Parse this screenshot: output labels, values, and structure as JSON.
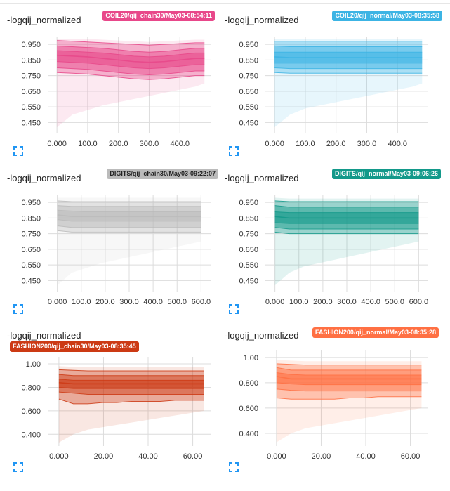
{
  "cards": [
    {
      "title": "-logqij_normalized",
      "run": "COIL20/qij_chain30/May03-08:54:11",
      "color": "#e8488a",
      "expand_icon": "fullscreen-icon"
    },
    {
      "title": "-logqij_normalized",
      "run": "COIL20/qij_normal/May03-08:35:58",
      "color": "#3cb4e4",
      "expand_icon": "fullscreen-icon"
    },
    {
      "title": "-logqij_normalized",
      "run": "DIGITS/qij_chain30/May03-09:22:07",
      "color": "#bbbbbb",
      "expand_icon": "fullscreen-icon"
    },
    {
      "title": "-logqij_normalized",
      "run": "DIGITS/qij_normal/May03-09:06:26",
      "color": "#13998a",
      "expand_icon": "fullscreen-icon"
    },
    {
      "title": "-logqij_normalized",
      "run": "FASHION200/qij_chain30/May03-08:35:45",
      "color": "#cc3a14",
      "expand_icon": "fullscreen-icon"
    },
    {
      "title": "-logqij_normalized",
      "run": "FASHION200/qij_normal/May03-08:35:28",
      "color": "#ff7043",
      "expand_icon": "fullscreen-icon"
    }
  ],
  "chart_data": [
    {
      "type": "area",
      "title": "-logqij_normalized",
      "series_label": "COIL20/qij_chain30/May03-08:54:11",
      "xlim": [
        -30,
        500
      ],
      "ylim": [
        0.38,
        1.0
      ],
      "xticks": [
        0,
        100,
        200,
        300,
        400
      ],
      "xtick_labels": [
        "0.000",
        "100.0",
        "200.0",
        "300.0",
        "400.0"
      ],
      "yticks": [
        0.45,
        0.55,
        0.65,
        0.75,
        0.85,
        0.95
      ],
      "ytick_labels": [
        "0.450",
        "0.550",
        "0.650",
        "0.750",
        "0.850",
        "0.950"
      ],
      "x": [
        0,
        50,
        100,
        150,
        200,
        250,
        300,
        350,
        400,
        450,
        480
      ],
      "max": [
        0.985,
        0.985,
        0.985,
        0.98,
        0.975,
        0.97,
        0.965,
        0.97,
        0.975,
        0.98,
        0.98
      ],
      "p93": [
        0.975,
        0.97,
        0.965,
        0.96,
        0.955,
        0.95,
        0.945,
        0.95,
        0.955,
        0.96,
        0.96
      ],
      "p84": [
        0.94,
        0.935,
        0.93,
        0.925,
        0.915,
        0.905,
        0.9,
        0.905,
        0.915,
        0.925,
        0.925
      ],
      "p69": [
        0.91,
        0.905,
        0.9,
        0.895,
        0.885,
        0.875,
        0.87,
        0.875,
        0.885,
        0.895,
        0.895
      ],
      "p50": [
        0.88,
        0.875,
        0.87,
        0.86,
        0.85,
        0.84,
        0.835,
        0.84,
        0.85,
        0.86,
        0.86
      ],
      "p31": [
        0.84,
        0.835,
        0.83,
        0.82,
        0.81,
        0.8,
        0.795,
        0.8,
        0.81,
        0.82,
        0.82
      ],
      "p16": [
        0.8,
        0.795,
        0.79,
        0.78,
        0.77,
        0.76,
        0.755,
        0.76,
        0.77,
        0.78,
        0.78
      ],
      "p7": [
        0.77,
        0.765,
        0.76,
        0.75,
        0.74,
        0.73,
        0.725,
        0.73,
        0.74,
        0.75,
        0.75
      ],
      "min": [
        0.42,
        0.5,
        0.53,
        0.56,
        0.58,
        0.6,
        0.62,
        0.64,
        0.66,
        0.68,
        0.7
      ]
    },
    {
      "type": "area",
      "title": "-logqij_normalized",
      "series_label": "COIL20/qij_normal/May03-08:35:58",
      "xlim": [
        -30,
        500
      ],
      "ylim": [
        0.38,
        1.0
      ],
      "xticks": [
        0,
        100,
        200,
        300,
        400
      ],
      "xtick_labels": [
        "0.000",
        "100.0",
        "200.0",
        "300.0",
        "400.0"
      ],
      "yticks": [
        0.45,
        0.55,
        0.65,
        0.75,
        0.85,
        0.95
      ],
      "ytick_labels": [
        "0.450",
        "0.550",
        "0.650",
        "0.750",
        "0.850",
        "0.950"
      ],
      "x": [
        0,
        50,
        100,
        150,
        200,
        250,
        300,
        350,
        400,
        450,
        480
      ],
      "max": [
        0.985,
        0.985,
        0.985,
        0.985,
        0.985,
        0.985,
        0.985,
        0.985,
        0.985,
        0.985,
        0.985
      ],
      "p93": [
        0.97,
        0.97,
        0.97,
        0.97,
        0.97,
        0.97,
        0.97,
        0.97,
        0.97,
        0.97,
        0.97
      ],
      "p84": [
        0.94,
        0.935,
        0.935,
        0.935,
        0.935,
        0.935,
        0.935,
        0.935,
        0.935,
        0.935,
        0.935
      ],
      "p69": [
        0.9,
        0.9,
        0.9,
        0.9,
        0.9,
        0.9,
        0.9,
        0.9,
        0.9,
        0.9,
        0.9
      ],
      "p50": [
        0.87,
        0.865,
        0.865,
        0.865,
        0.865,
        0.865,
        0.865,
        0.865,
        0.865,
        0.865,
        0.865
      ],
      "p31": [
        0.83,
        0.83,
        0.83,
        0.83,
        0.83,
        0.83,
        0.83,
        0.83,
        0.83,
        0.83,
        0.83
      ],
      "p16": [
        0.8,
        0.795,
        0.795,
        0.795,
        0.795,
        0.795,
        0.795,
        0.795,
        0.795,
        0.795,
        0.795
      ],
      "p7": [
        0.77,
        0.765,
        0.765,
        0.765,
        0.765,
        0.765,
        0.765,
        0.765,
        0.765,
        0.765,
        0.765
      ],
      "min": [
        0.42,
        0.5,
        0.54,
        0.56,
        0.58,
        0.6,
        0.62,
        0.64,
        0.66,
        0.68,
        0.7
      ]
    },
    {
      "type": "area",
      "title": "-logqij_normalized",
      "series_label": "DIGITS/qij_chain30/May03-09:22:07",
      "xlim": [
        -40,
        640
      ],
      "ylim": [
        0.38,
        1.0
      ],
      "xticks": [
        0,
        100,
        200,
        300,
        400,
        500,
        600
      ],
      "xtick_labels": [
        "0.000",
        "100.0",
        "200.0",
        "300.0",
        "400.0",
        "500.0",
        "600.0"
      ],
      "yticks": [
        0.45,
        0.55,
        0.65,
        0.75,
        0.85,
        0.95
      ],
      "ytick_labels": [
        "0.450",
        "0.550",
        "0.650",
        "0.750",
        "0.850",
        "0.950"
      ],
      "x": [
        0,
        60,
        120,
        180,
        240,
        300,
        360,
        420,
        480,
        540,
        600
      ],
      "max": [
        0.98,
        0.98,
        0.98,
        0.98,
        0.98,
        0.98,
        0.98,
        0.98,
        0.98,
        0.98,
        0.98
      ],
      "p93": [
        0.96,
        0.955,
        0.955,
        0.955,
        0.955,
        0.955,
        0.955,
        0.955,
        0.955,
        0.955,
        0.955
      ],
      "p84": [
        0.93,
        0.925,
        0.925,
        0.925,
        0.925,
        0.925,
        0.925,
        0.925,
        0.925,
        0.925,
        0.925
      ],
      "p69": [
        0.9,
        0.895,
        0.89,
        0.89,
        0.89,
        0.89,
        0.89,
        0.89,
        0.89,
        0.89,
        0.89
      ],
      "p50": [
        0.87,
        0.86,
        0.86,
        0.86,
        0.86,
        0.86,
        0.86,
        0.86,
        0.86,
        0.86,
        0.86
      ],
      "p31": [
        0.84,
        0.83,
        0.83,
        0.83,
        0.83,
        0.83,
        0.83,
        0.83,
        0.83,
        0.83,
        0.83
      ],
      "p16": [
        0.8,
        0.79,
        0.79,
        0.79,
        0.79,
        0.79,
        0.79,
        0.79,
        0.79,
        0.79,
        0.79
      ],
      "p7": [
        0.77,
        0.76,
        0.76,
        0.76,
        0.76,
        0.76,
        0.76,
        0.76,
        0.76,
        0.76,
        0.76
      ],
      "min": [
        0.42,
        0.5,
        0.53,
        0.56,
        0.58,
        0.6,
        0.62,
        0.64,
        0.66,
        0.68,
        0.7
      ]
    },
    {
      "type": "area",
      "title": "-logqij_normalized",
      "series_label": "DIGITS/qij_normal/May03-09:06:26",
      "xlim": [
        -40,
        640
      ],
      "ylim": [
        0.38,
        1.0
      ],
      "xticks": [
        0,
        100,
        200,
        300,
        400,
        500,
        600
      ],
      "xtick_labels": [
        "0.000",
        "100.0",
        "200.0",
        "300.0",
        "400.0",
        "500.0",
        "600.0"
      ],
      "yticks": [
        0.45,
        0.55,
        0.65,
        0.75,
        0.85,
        0.95
      ],
      "ytick_labels": [
        "0.450",
        "0.550",
        "0.650",
        "0.750",
        "0.850",
        "0.950"
      ],
      "x": [
        0,
        60,
        120,
        180,
        240,
        300,
        360,
        420,
        480,
        540,
        600
      ],
      "max": [
        0.98,
        0.975,
        0.975,
        0.975,
        0.975,
        0.975,
        0.975,
        0.975,
        0.975,
        0.975,
        0.975
      ],
      "p93": [
        0.96,
        0.955,
        0.955,
        0.955,
        0.955,
        0.955,
        0.955,
        0.955,
        0.955,
        0.955,
        0.955
      ],
      "p84": [
        0.93,
        0.92,
        0.92,
        0.92,
        0.92,
        0.92,
        0.92,
        0.92,
        0.92,
        0.92,
        0.92
      ],
      "p69": [
        0.89,
        0.885,
        0.885,
        0.885,
        0.885,
        0.885,
        0.885,
        0.885,
        0.885,
        0.885,
        0.885
      ],
      "p50": [
        0.86,
        0.85,
        0.85,
        0.85,
        0.85,
        0.85,
        0.85,
        0.85,
        0.85,
        0.85,
        0.85
      ],
      "p31": [
        0.82,
        0.815,
        0.815,
        0.815,
        0.815,
        0.815,
        0.815,
        0.815,
        0.815,
        0.815,
        0.815
      ],
      "p16": [
        0.79,
        0.78,
        0.78,
        0.78,
        0.78,
        0.78,
        0.78,
        0.78,
        0.78,
        0.78,
        0.78
      ],
      "p7": [
        0.76,
        0.75,
        0.75,
        0.75,
        0.75,
        0.75,
        0.75,
        0.75,
        0.75,
        0.75,
        0.75
      ],
      "min": [
        0.42,
        0.5,
        0.54,
        0.56,
        0.58,
        0.6,
        0.62,
        0.64,
        0.66,
        0.68,
        0.7
      ]
    },
    {
      "type": "area",
      "title": "-logqij_normalized",
      "series_label": "FASHION200/qij_chain30/May03-08:35:45",
      "xlim": [
        -5,
        68
      ],
      "ylim": [
        0.3,
        1.06
      ],
      "xticks": [
        0,
        20,
        40,
        60
      ],
      "xtick_labels": [
        "0.000",
        "20.00",
        "40.00",
        "60.00"
      ],
      "yticks": [
        0.4,
        0.6,
        0.8,
        1.0
      ],
      "ytick_labels": [
        "0.400",
        "0.600",
        "0.800",
        "1.00"
      ],
      "x": [
        0,
        6.5,
        13,
        19.5,
        26,
        32.5,
        39,
        45.5,
        52,
        58.5,
        65
      ],
      "max": [
        0.98,
        0.975,
        0.97,
        0.97,
        0.97,
        0.97,
        0.97,
        0.97,
        0.97,
        0.97,
        0.97
      ],
      "p93": [
        0.95,
        0.945,
        0.94,
        0.94,
        0.94,
        0.94,
        0.94,
        0.94,
        0.94,
        0.94,
        0.94
      ],
      "p84": [
        0.91,
        0.9,
        0.9,
        0.9,
        0.9,
        0.9,
        0.9,
        0.9,
        0.9,
        0.9,
        0.9
      ],
      "p69": [
        0.87,
        0.86,
        0.86,
        0.86,
        0.86,
        0.86,
        0.86,
        0.86,
        0.86,
        0.86,
        0.86
      ],
      "p50": [
        0.84,
        0.83,
        0.83,
        0.83,
        0.83,
        0.83,
        0.83,
        0.83,
        0.83,
        0.83,
        0.83
      ],
      "p31": [
        0.8,
        0.79,
        0.79,
        0.79,
        0.79,
        0.79,
        0.79,
        0.79,
        0.79,
        0.79,
        0.79
      ],
      "p16": [
        0.76,
        0.75,
        0.74,
        0.74,
        0.74,
        0.74,
        0.74,
        0.74,
        0.74,
        0.74,
        0.74
      ],
      "p7": [
        0.7,
        0.66,
        0.66,
        0.67,
        0.67,
        0.68,
        0.68,
        0.68,
        0.69,
        0.69,
        0.69
      ],
      "min": [
        0.33,
        0.4,
        0.44,
        0.46,
        0.48,
        0.5,
        0.52,
        0.54,
        0.56,
        0.58,
        0.6
      ]
    },
    {
      "type": "area",
      "title": "-logqij_normalized",
      "series_label": "FASHION200/qij_normal/May03-08:35:28",
      "xlim": [
        -5,
        68
      ],
      "ylim": [
        0.3,
        1.06
      ],
      "xticks": [
        0,
        20,
        40,
        60
      ],
      "xtick_labels": [
        "0.000",
        "20.00",
        "40.00",
        "60.00"
      ],
      "yticks": [
        0.4,
        0.6,
        0.8,
        1.0
      ],
      "ytick_labels": [
        "0.400",
        "0.600",
        "0.800",
        "1.00"
      ],
      "x": [
        0,
        6.5,
        13,
        19.5,
        26,
        32.5,
        39,
        45.5,
        52,
        58.5,
        65
      ],
      "max": [
        0.98,
        0.975,
        0.97,
        0.97,
        0.97,
        0.97,
        0.97,
        0.97,
        0.97,
        0.97,
        0.97
      ],
      "p93": [
        0.95,
        0.945,
        0.94,
        0.94,
        0.94,
        0.94,
        0.94,
        0.94,
        0.94,
        0.94,
        0.94
      ],
      "p84": [
        0.92,
        0.9,
        0.9,
        0.9,
        0.9,
        0.9,
        0.9,
        0.9,
        0.9,
        0.9,
        0.9
      ],
      "p69": [
        0.88,
        0.865,
        0.86,
        0.86,
        0.86,
        0.86,
        0.86,
        0.86,
        0.86,
        0.86,
        0.86
      ],
      "p50": [
        0.85,
        0.83,
        0.83,
        0.83,
        0.83,
        0.83,
        0.83,
        0.83,
        0.83,
        0.83,
        0.83
      ],
      "p31": [
        0.8,
        0.79,
        0.785,
        0.785,
        0.785,
        0.785,
        0.785,
        0.785,
        0.785,
        0.785,
        0.785
      ],
      "p16": [
        0.75,
        0.74,
        0.735,
        0.735,
        0.735,
        0.735,
        0.735,
        0.735,
        0.735,
        0.735,
        0.735
      ],
      "p7": [
        0.68,
        0.67,
        0.67,
        0.67,
        0.67,
        0.68,
        0.68,
        0.69,
        0.69,
        0.69,
        0.69
      ],
      "min": [
        0.33,
        0.4,
        0.44,
        0.46,
        0.48,
        0.5,
        0.52,
        0.54,
        0.56,
        0.58,
        0.6
      ]
    }
  ]
}
